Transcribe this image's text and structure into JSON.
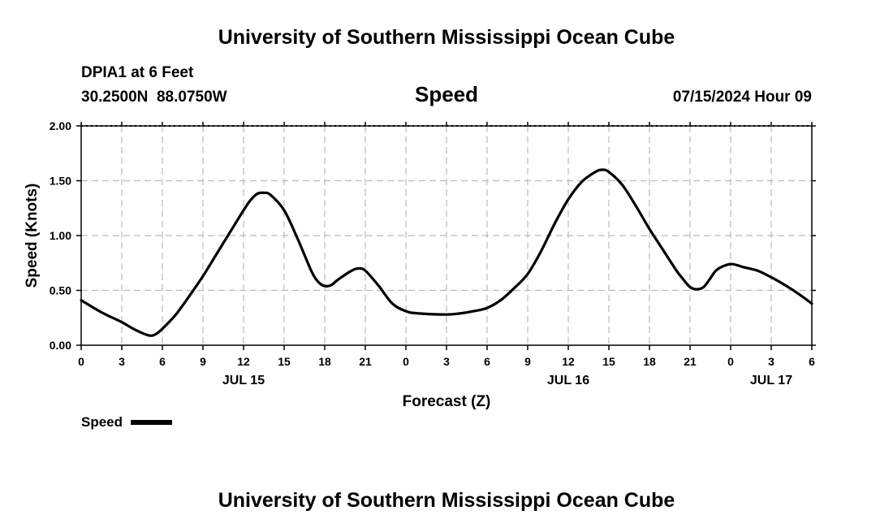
{
  "header": {
    "title": "University of Southern Mississippi Ocean Cube",
    "station": "DPIA1 at 6 Feet",
    "coords": "30.2500N  88.0750W",
    "chart_title": "Speed",
    "datetime": "07/15/2024 Hour 09"
  },
  "footer": {
    "title": "University of Southern Mississippi Ocean Cube"
  },
  "legend": {
    "label": "Speed"
  },
  "colors": {
    "line": "#000000",
    "grid": "#bbbbbb",
    "background": "#ffffff"
  },
  "chart_data": {
    "type": "line",
    "title": "Speed",
    "xlabel": "Forecast (Z)",
    "ylabel": "Speed (Knots)",
    "xlim": [
      0,
      54
    ],
    "ylim": [
      0,
      2
    ],
    "grid": true,
    "legend_position": "bottom-left",
    "y_ticks": [
      "0.00",
      "0.50",
      "1.00",
      "1.50",
      "2.00"
    ],
    "x_ticks": [
      {
        "hour": 0,
        "label": "0"
      },
      {
        "hour": 3,
        "label": "3"
      },
      {
        "hour": 6,
        "label": "6"
      },
      {
        "hour": 9,
        "label": "9"
      },
      {
        "hour": 12,
        "label": "12"
      },
      {
        "hour": 15,
        "label": "15"
      },
      {
        "hour": 18,
        "label": "18"
      },
      {
        "hour": 21,
        "label": "21"
      },
      {
        "hour": 24,
        "label": "0"
      },
      {
        "hour": 27,
        "label": "3"
      },
      {
        "hour": 30,
        "label": "6"
      },
      {
        "hour": 33,
        "label": "9"
      },
      {
        "hour": 36,
        "label": "12"
      },
      {
        "hour": 39,
        "label": "15"
      },
      {
        "hour": 42,
        "label": "18"
      },
      {
        "hour": 45,
        "label": "21"
      },
      {
        "hour": 48,
        "label": "0"
      },
      {
        "hour": 51,
        "label": "3"
      },
      {
        "hour": 54,
        "label": "6"
      }
    ],
    "date_labels": [
      {
        "hour": 12,
        "label": "JUL 15"
      },
      {
        "hour": 36,
        "label": "JUL 16"
      },
      {
        "hour": 51,
        "label": "JUL 17"
      }
    ],
    "series": [
      {
        "name": "Speed",
        "x": [
          0,
          1.5,
          3,
          4,
          5,
          5.5,
          6,
          7,
          8,
          9,
          10,
          11,
          12,
          12.5,
          13,
          13.5,
          14,
          15,
          16,
          17,
          17.5,
          18,
          18.5,
          19,
          20,
          20.5,
          21,
          22,
          23,
          24,
          25,
          27,
          28,
          29,
          30,
          31,
          32,
          33,
          34,
          35,
          36,
          37,
          38,
          38.5,
          39,
          40,
          41,
          42,
          43,
          44,
          44.5,
          45,
          45.5,
          46,
          46.5,
          47,
          48,
          49,
          50,
          51,
          52,
          53,
          54
        ],
        "y": [
          0.41,
          0.3,
          0.21,
          0.14,
          0.09,
          0.1,
          0.15,
          0.28,
          0.45,
          0.63,
          0.83,
          1.03,
          1.23,
          1.32,
          1.38,
          1.39,
          1.37,
          1.23,
          0.97,
          0.68,
          0.58,
          0.54,
          0.55,
          0.6,
          0.68,
          0.7,
          0.68,
          0.54,
          0.38,
          0.31,
          0.29,
          0.28,
          0.29,
          0.31,
          0.34,
          0.41,
          0.52,
          0.65,
          0.86,
          1.11,
          1.33,
          1.49,
          1.58,
          1.6,
          1.58,
          1.46,
          1.27,
          1.06,
          0.87,
          0.68,
          0.6,
          0.53,
          0.51,
          0.53,
          0.61,
          0.69,
          0.74,
          0.71,
          0.68,
          0.62,
          0.55,
          0.47,
          0.38
        ]
      }
    ]
  }
}
